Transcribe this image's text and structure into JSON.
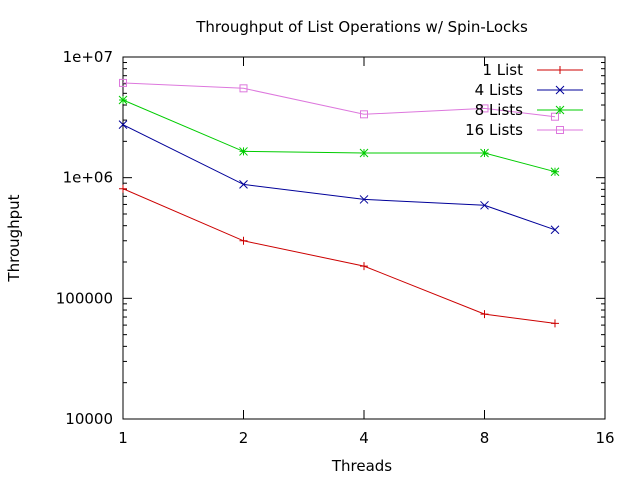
{
  "chart_data": {
    "type": "line",
    "title": "Throughput of List Operations w/ Spin-Locks",
    "xlabel": "Threads",
    "ylabel": "Throughput",
    "x_scale": "log2",
    "y_scale": "log10",
    "xlim": [
      1,
      16
    ],
    "ylim": [
      10000,
      10000000
    ],
    "x_ticks": [
      "1",
      "2",
      "4",
      "8",
      "16"
    ],
    "y_ticks": [
      "10000",
      "100000",
      "1e+06",
      "1e+07"
    ],
    "x": [
      1,
      2,
      4,
      8,
      12
    ],
    "grid": false,
    "legend_position": "top-right",
    "series": [
      {
        "name": "1 List",
        "color": "#cc0000",
        "marker": "plus",
        "values": [
          810000,
          300000,
          185000,
          74000,
          62000
        ]
      },
      {
        "name": "4 Lists",
        "color": "#000099",
        "marker": "cross",
        "values": [
          2750000,
          880000,
          660000,
          590000,
          370000
        ]
      },
      {
        "name": "8 Lists",
        "color": "#00cc00",
        "marker": "star",
        "values": [
          4400000,
          1650000,
          1600000,
          1600000,
          1120000
        ]
      },
      {
        "name": "16 Lists",
        "color": "#dd77dd",
        "marker": "square",
        "values": [
          6100000,
          5500000,
          3350000,
          3750000,
          3200000
        ]
      }
    ]
  }
}
